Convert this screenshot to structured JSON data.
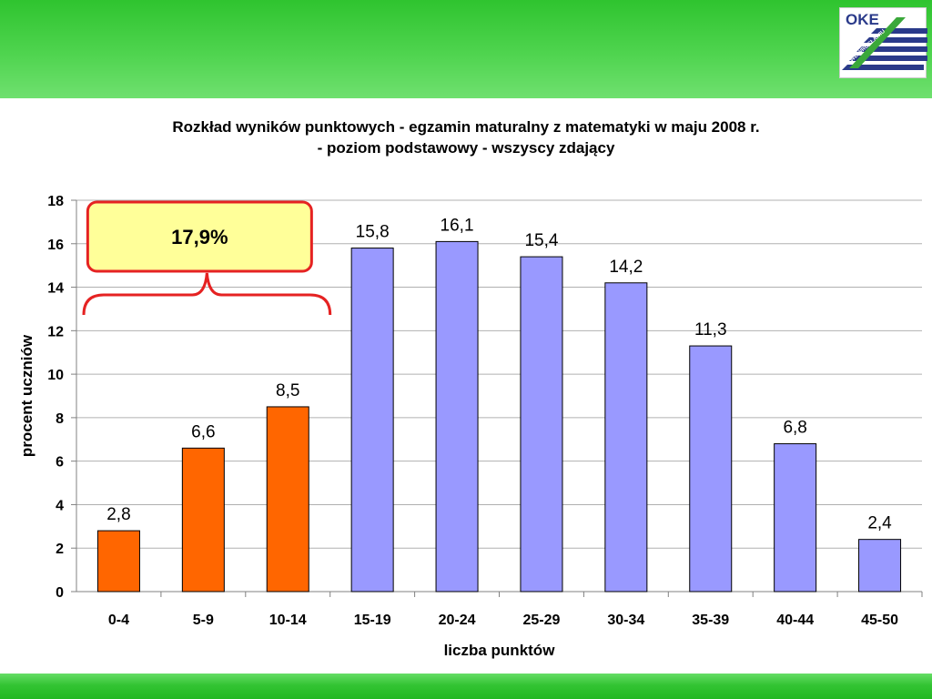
{
  "header": {
    "logo": {
      "text": "OKE",
      "subtext": "WE WROCŁAWIU"
    }
  },
  "colors": {
    "top_band": "#3ccc3c",
    "highlight_bar": "#ff6600",
    "normal_bar": "#9999ff",
    "callout_fill": "#ffff99",
    "callout_border": "#e52222",
    "logo_blue": "#2a3a8a"
  },
  "chart_data": {
    "type": "bar",
    "title_line1": "Rozkład wyników punktowych - egzamin maturalny z matematyki w maju 2008 r.",
    "title_line2": "- poziom podstawowy - wszyscy zdający",
    "xlabel": "liczba punktów",
    "ylabel": "procent uczniów",
    "ylim": [
      0,
      18
    ],
    "yticks": [
      0,
      2,
      4,
      6,
      8,
      10,
      12,
      14,
      16,
      18
    ],
    "grid": true,
    "categories": [
      "0-4",
      "5-9",
      "10-14",
      "15-19",
      "20-24",
      "25-29",
      "30-34",
      "35-39",
      "40-44",
      "45-50"
    ],
    "values": [
      2.8,
      6.6,
      8.5,
      15.8,
      16.1,
      15.4,
      14.2,
      11.3,
      6.8,
      2.4
    ],
    "value_labels": [
      "2,8",
      "6,6",
      "8,5",
      "15,8",
      "16,1",
      "15,4",
      "14,2",
      "11,3",
      "6,8",
      "2,4"
    ],
    "highlighted_categories": [
      "0-4",
      "5-9",
      "10-14"
    ],
    "annotation": {
      "text": "17,9%",
      "spans": [
        "0-4",
        "5-9",
        "10-14"
      ]
    }
  }
}
